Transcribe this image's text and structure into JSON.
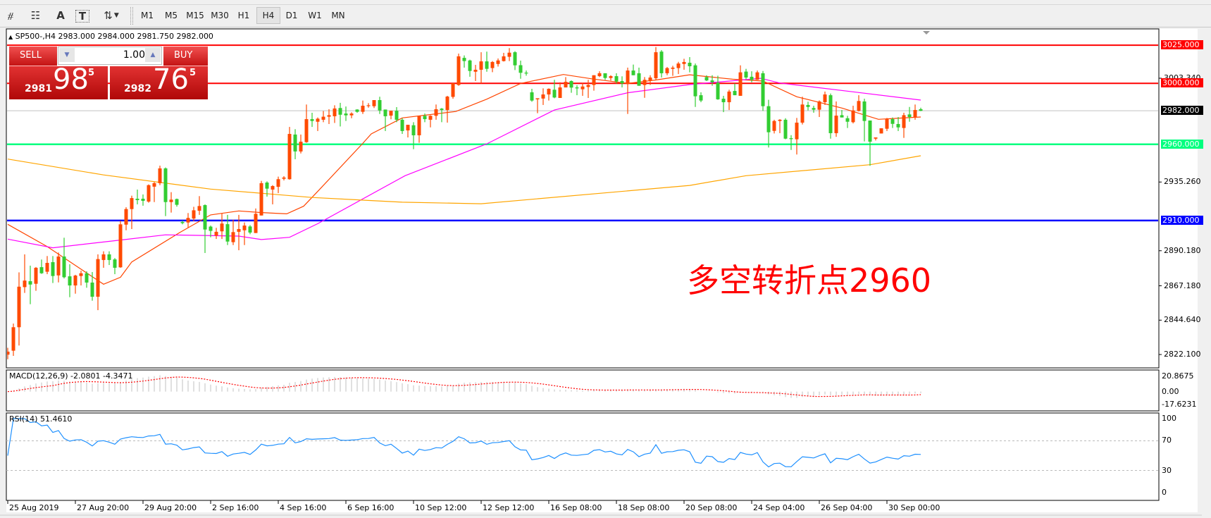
{
  "toolbar": {
    "icons": [
      "elliott-wave-icon",
      "fibonacci-icon",
      "text-icon",
      "text-label-icon",
      "arrows-icon"
    ],
    "glyphs": {
      "elliott": "⧣",
      "fibo": "☷",
      "text": "A",
      "label": "T",
      "arrows": "⇅"
    },
    "timeframes": [
      "M1",
      "M5",
      "M15",
      "M30",
      "H1",
      "H4",
      "D1",
      "W1",
      "MN"
    ],
    "active_timeframe": "H4"
  },
  "chart": {
    "symbol_line": "SP500-,H4  2983.000 2984.000 2981.750 2982.000",
    "annotation": "多空转折点2960",
    "colors": {
      "up": "#ff4a00",
      "down": "#32cd32",
      "ma_fast": "#ff4500",
      "ma_mid": "#ff00ff",
      "ma_slow": "#ffa500",
      "macd_hist": "#c0c0c0",
      "macd_signal": "#ff0000",
      "rsi": "#1e90ff"
    }
  },
  "trade_panel": {
    "sell_label": "SELL",
    "buy_label": "BUY",
    "lot": "1.00",
    "sell_price": {
      "big_prefix": "2981",
      "big": "98",
      "sup": "5"
    },
    "buy_price": {
      "big_prefix": "2982",
      "big": "76",
      "sup": "5"
    }
  },
  "price_axis": {
    "ticks": [
      "3003.340",
      "2935.260",
      "2890.180",
      "2867.180",
      "2844.640",
      "2822.100"
    ],
    "tick_values": [
      3003.34,
      2935.26,
      2890.18,
      2867.18,
      2844.64,
      2822.1
    ],
    "levels": [
      {
        "value": 3025.0,
        "label": "3025.000",
        "color": "#ff0000"
      },
      {
        "value": 3000.0,
        "label": "3000.000",
        "color": "#ff0000"
      },
      {
        "value": 2982.0,
        "label": "2982.000",
        "color": "#000000"
      },
      {
        "value": 2960.0,
        "label": "2960.000",
        "color": "#00ff7f"
      },
      {
        "value": 2910.0,
        "label": "2910.000",
        "color": "#0000ff"
      }
    ]
  },
  "time_axis": {
    "labels": [
      "25 Aug 2019",
      "27 Aug 20:00",
      "29 Aug 20:00",
      "2 Sep 16:00",
      "4 Sep 16:00",
      "6 Sep 16:00",
      "10 Sep 12:00",
      "12 Sep 12:00",
      "16 Sep 08:00",
      "18 Sep 08:00",
      "20 Sep 08:00",
      "24 Sep 04:00",
      "26 Sep 04:00",
      "30 Sep 00:00"
    ],
    "bars_per_label": 12
  },
  "macd": {
    "label": "MACD(12,26,9) -2.0801 -4.3471",
    "axis": [
      "20.8675",
      "0.00",
      "-17.6231"
    ],
    "range": [
      -17.6231,
      20.8675
    ]
  },
  "rsi": {
    "label": "RSI(14) 51.4610",
    "axis": [
      "100",
      "70",
      "30",
      "0"
    ],
    "levels": [
      70,
      30
    ]
  },
  "chart_data": {
    "type": "candlestick",
    "symbol": "SP500-",
    "timeframe": "H4",
    "ylim": [
      2812,
      3046
    ],
    "ohlc": [
      [
        2822,
        2826.5,
        2819,
        2824
      ],
      [
        2824.6,
        2842.4,
        2821.2,
        2840
      ],
      [
        2840,
        2876,
        2828,
        2866.6
      ],
      [
        2866.3,
        2887.8,
        2862.5,
        2870.6
      ],
      [
        2870.2,
        2880.4,
        2855.1,
        2868
      ],
      [
        2868.5,
        2879.5,
        2863.9,
        2879
      ],
      [
        2879.4,
        2884.4,
        2875,
        2875.4
      ],
      [
        2876.4,
        2886.7,
        2874.8,
        2882.2
      ],
      [
        2882.7,
        2886.7,
        2869,
        2873.6
      ],
      [
        2874,
        2889,
        2869.4,
        2886.4
      ],
      [
        2886.4,
        2898.7,
        2872,
        2872.8
      ],
      [
        2873.4,
        2881.3,
        2859.7,
        2867.4
      ],
      [
        2867.4,
        2874.4,
        2862,
        2873.9
      ],
      [
        2873.6,
        2877.1,
        2867.4,
        2875.4
      ],
      [
        2875.4,
        2876.7,
        2865.9,
        2869.3
      ],
      [
        2869.3,
        2876.2,
        2857.4,
        2860
      ],
      [
        2860,
        2887.8,
        2851.2,
        2884.7
      ],
      [
        2884.1,
        2889.8,
        2879,
        2887.8
      ],
      [
        2887.8,
        2889.8,
        2880.8,
        2884.1
      ],
      [
        2884.5,
        2885.4,
        2874.8,
        2879
      ],
      [
        2879.3,
        2909.8,
        2879,
        2907.5
      ],
      [
        2907.3,
        2918.7,
        2903.6,
        2917.5
      ],
      [
        2917.5,
        2926.3,
        2904.4,
        2924.7
      ],
      [
        2924.3,
        2930.3,
        2920.6,
        2923.4
      ],
      [
        2924.3,
        2927.1,
        2919.7,
        2922.9
      ],
      [
        2922.4,
        2933.7,
        2921.7,
        2933.2
      ],
      [
        2932.2,
        2935.2,
        2922.1,
        2934.5
      ],
      [
        2934.5,
        2946,
        2933.2,
        2944.2
      ],
      [
        2944.2,
        2944.8,
        2912.9,
        2922.1
      ],
      [
        2922.1,
        2928.6,
        2915.2,
        2923.7
      ],
      [
        2924.1,
        2924.4,
        2919.1,
        2920.3
      ],
      [
        2909,
        2910,
        2907.5,
        2908.3
      ],
      [
        2908.7,
        2914.9,
        2905.5,
        2911.7
      ],
      [
        2911.3,
        2919,
        2909.5,
        2916.7
      ],
      [
        2916.4,
        2926,
        2913.7,
        2919.5
      ],
      [
        2920.1,
        2920.6,
        2888.7,
        2904.1
      ],
      [
        2906,
        2906.7,
        2899,
        2903.2
      ],
      [
        2900.1,
        2905.2,
        2897.9,
        2902.6
      ],
      [
        2902.9,
        2914.7,
        2897.9,
        2908
      ],
      [
        2907.6,
        2913.7,
        2893.9,
        2896.2
      ],
      [
        2895.8,
        2910.6,
        2893.9,
        2902.4
      ],
      [
        2902.6,
        2913.7,
        2890.5,
        2904.4
      ],
      [
        2903.6,
        2908.7,
        2893.9,
        2906.7
      ],
      [
        2906.1,
        2907,
        2901,
        2902.1
      ],
      [
        2901.8,
        2917.9,
        2901.8,
        2914.4
      ],
      [
        2913.3,
        2936,
        2913.3,
        2934.5
      ],
      [
        2934.9,
        2935.7,
        2925.7,
        2930.9
      ],
      [
        2930.3,
        2933.2,
        2920.6,
        2932.6
      ],
      [
        2932.1,
        2938.8,
        2928,
        2937.1
      ],
      [
        2937.4,
        2939.1,
        2936.3,
        2938.2
      ],
      [
        2937.1,
        2971.4,
        2936.8,
        2966.8
      ],
      [
        2966.4,
        2969.9,
        2950.2,
        2955.3
      ],
      [
        2955.3,
        2966.4,
        2954,
        2961.7
      ],
      [
        2961.4,
        2986.1,
        2961,
        2976.5
      ],
      [
        2976.5,
        2980.7,
        2971.4,
        2975.3
      ],
      [
        2974.8,
        2977.6,
        2968.7,
        2976.8
      ],
      [
        2976.1,
        2981.8,
        2974.5,
        2978.1
      ],
      [
        2978.1,
        2983,
        2973.3,
        2979.1
      ],
      [
        2978.4,
        2985.6,
        2974,
        2983.5
      ],
      [
        2983.8,
        2987.2,
        2971.7,
        2979.4
      ],
      [
        2980.2,
        2984.8,
        2975.3,
        2979
      ],
      [
        2979,
        2981,
        2977.1,
        2980.2
      ],
      [
        2982.8,
        2983,
        2980.7,
        2981.3
      ],
      [
        2981.3,
        2988.7,
        2979.9,
        2985.3
      ],
      [
        2985.6,
        2987,
        2984,
        2985.6
      ],
      [
        2985,
        2989,
        2983.8,
        2989
      ],
      [
        2989,
        2991.2,
        2979.9,
        2982.2
      ],
      [
        2982.8,
        2982.8,
        2968.7,
        2978.4
      ],
      [
        2978.8,
        2982,
        2976.4,
        2982
      ],
      [
        2982,
        2984.4,
        2974.5,
        2976.1
      ],
      [
        2976.1,
        2977.1,
        2966.8,
        2968.7
      ],
      [
        2969.1,
        2972.8,
        2964.5,
        2972.8
      ],
      [
        2972.5,
        2974.5,
        2956.8,
        2965.9
      ],
      [
        2965.9,
        2978.8,
        2961,
        2978.8
      ],
      [
        2978.7,
        2980.2,
        2974.5,
        2976.5
      ],
      [
        2976.1,
        2979.1,
        2971.1,
        2978.7
      ],
      [
        2978.7,
        2986.1,
        2976.1,
        2983
      ],
      [
        2983.4,
        2983.8,
        2974.5,
        2982.5
      ],
      [
        2982.5,
        2991.8,
        2974.2,
        2991.3
      ],
      [
        2991.1,
        3000.1,
        2989.9,
        3000.1
      ],
      [
        2998.9,
        3019.5,
        2998.4,
        3017.7
      ],
      [
        3016.7,
        3018.3,
        3010.3,
        3014.6
      ],
      [
        3015,
        3015.5,
        3004.3,
        3008.1
      ],
      [
        3007.6,
        3012.1,
        3001.5,
        3008.9
      ],
      [
        3008.9,
        3020.4,
        2999.9,
        3014.4
      ],
      [
        3014.4,
        3020.8,
        3007.6,
        3009.5
      ],
      [
        3010,
        3014.6,
        3007.3,
        3014
      ],
      [
        3012.7,
        3016.3,
        3011,
        3015
      ],
      [
        3014.6,
        3020,
        3014.3,
        3017.7
      ],
      [
        3017.4,
        3023.1,
        3014.6,
        3020.1
      ],
      [
        3020.4,
        3021.1,
        3008.7,
        3011.8
      ],
      [
        3011.9,
        3014.9,
        3003,
        3006.9
      ],
      [
        3007,
        3008.4,
        3005,
        3006.6
      ],
      [
        2994.1,
        2996.4,
        2987.9,
        2988.7
      ],
      [
        2989.5,
        2990.2,
        2980.4,
        2990.2
      ],
      [
        2990,
        2996.7,
        2985.8,
        2992.7
      ],
      [
        2992.7,
        2996.7,
        2988.7,
        2996.4
      ],
      [
        2995.8,
        3002.3,
        2990.2,
        2990.7
      ],
      [
        2990.4,
        3000.7,
        2990.4,
        2997.3
      ],
      [
        2997.3,
        3004.1,
        2997.3,
        3001
      ],
      [
        3001.5,
        3001.9,
        2993.8,
        2997.2
      ],
      [
        2997.3,
        2998.7,
        2992.2,
        2996.7
      ],
      [
        2996.1,
        3000.4,
        2991.8,
        2997.9
      ],
      [
        2997.6,
        3002.3,
        2990.4,
        2998.9
      ],
      [
        2998.9,
        3005.3,
        2995.2,
        3005.3
      ],
      [
        3004.7,
        3007.9,
        3004.1,
        3006.6
      ],
      [
        3006.6,
        3006.6,
        3002.3,
        3003.5
      ],
      [
        3003.5,
        3005.3,
        3001.8,
        3004.7
      ],
      [
        3004.7,
        3006.6,
        2999.9,
        3001.2
      ],
      [
        3001.5,
        3004.6,
        2997.3,
        3000
      ],
      [
        2999.5,
        3010.3,
        2979.9,
        3008.4
      ],
      [
        3008.4,
        3012.3,
        3005.3,
        3005.3
      ],
      [
        3006.6,
        3010.3,
        2998.4,
        2998.4
      ],
      [
        2998.9,
        3004.1,
        2990.5,
        3002.3
      ],
      [
        3001.9,
        3005.3,
        2998.9,
        3003.8
      ],
      [
        3003.3,
        3023.8,
        3002.3,
        3020.4
      ],
      [
        3020.8,
        3021.8,
        3003.8,
        3006.6
      ],
      [
        3006.6,
        3010.7,
        3005.3,
        3010
      ],
      [
        3009.5,
        3011.5,
        3004.9,
        3010.3
      ],
      [
        3010,
        3014.1,
        3006.1,
        3013
      ],
      [
        3012.7,
        3016.1,
        3008.9,
        3014
      ],
      [
        3013.5,
        3017.2,
        3007.2,
        3011.2
      ],
      [
        3011.8,
        3013,
        2984.5,
        2991.5
      ],
      [
        2992.2,
        2994.1,
        2987.6,
        2988.7
      ],
      [
        3004.1,
        3005.3,
        3001.5,
        3001.9
      ],
      [
        3001.9,
        3005.3,
        2998.4,
        3000.7
      ],
      [
        3000.4,
        3005,
        2989.2,
        2989.5
      ],
      [
        2989.9,
        2991.8,
        2981.1,
        2987.6
      ],
      [
        2987.6,
        2995.8,
        2982.5,
        2994.6
      ],
      [
        2995,
        2999.9,
        2992.2,
        2992.2
      ],
      [
        2991.8,
        3011.8,
        2991.8,
        3007.2
      ],
      [
        3007.7,
        3009.5,
        3002.6,
        3003.8
      ],
      [
        3004.3,
        3007.9,
        3000.7,
        3002.3
      ],
      [
        3002.3,
        3008.4,
        3002.3,
        3007.2
      ],
      [
        3006.6,
        3008.1,
        2981.9,
        2985
      ],
      [
        2985,
        2989.2,
        2957.9,
        2967.9
      ],
      [
        2968.8,
        2976.1,
        2967.1,
        2975.3
      ],
      [
        2975.3,
        2976.5,
        2967.3,
        2976.1
      ],
      [
        2976.1,
        2977.1,
        2963.3,
        2963.7
      ],
      [
        2964,
        2966,
        2956.3,
        2963.4
      ],
      [
        2963.3,
        2977.3,
        2953.3,
        2974.2
      ],
      [
        2974.2,
        2991.2,
        2973,
        2986.1
      ],
      [
        2985.8,
        2987.9,
        2982.2,
        2984.5
      ],
      [
        2983.8,
        2985.3,
        2980.7,
        2982.7
      ],
      [
        2982.7,
        2988.8,
        2977.9,
        2988.1
      ],
      [
        2987.6,
        2994.6,
        2985.8,
        2992.7
      ],
      [
        2992.2,
        2993.3,
        2963.7,
        2967.3
      ],
      [
        2967.3,
        2988.1,
        2964.9,
        2978.8
      ],
      [
        2979.1,
        2982.5,
        2977.6,
        2977.6
      ],
      [
        2977.1,
        2978.7,
        2970.7,
        2974.8
      ],
      [
        2974.5,
        2985.3,
        2973.7,
        2982.2
      ],
      [
        2981.9,
        2992.2,
        2981.5,
        2988.4
      ],
      [
        2988.1,
        2989.9,
        2961.9,
        2975.3
      ],
      [
        2975.6,
        2975.6,
        2945.9,
        2961.7
      ],
      [
        2963.7,
        2964.5,
        2962.5,
        2964.5
      ],
      [
        2967.1,
        2970.5,
        2967.1,
        2970.5
      ],
      [
        2970.2,
        2977.3,
        2968.7,
        2976.5
      ],
      [
        2976.5,
        2977.6,
        2970.7,
        2973.4
      ],
      [
        2973.3,
        2977.9,
        2968.7,
        2971.1
      ],
      [
        2970.7,
        2980.7,
        2964.2,
        2979.1
      ],
      [
        2979.6,
        2984.5,
        2974.8,
        2977.9
      ],
      [
        2977.6,
        2986.1,
        2976.1,
        2982.5
      ],
      [
        2983,
        2984,
        2981.75,
        2982
      ]
    ],
    "moving_averages": [
      {
        "points": [
          [
            0,
            2907.5
          ],
          [
            7,
            2892.9
          ],
          [
            17,
            2868.2
          ],
          [
            20,
            2872.8
          ],
          [
            22,
            2882.8
          ],
          [
            30.5,
            2902.1
          ],
          [
            36,
            2913.7
          ],
          [
            41,
            2916.3
          ],
          [
            45,
            2915.2
          ],
          [
            49.5,
            2914.4
          ],
          [
            52.5,
            2919.4
          ],
          [
            55,
            2929.1
          ],
          [
            63,
            2960.6
          ],
          [
            64.5,
            2966.8
          ],
          [
            70,
            2977.3
          ],
          [
            79.5,
            2981.5
          ],
          [
            85,
            2989.6
          ],
          [
            91,
            2999.9
          ],
          [
            98.6,
            3005.8
          ],
          [
            103.5,
            3003.0
          ],
          [
            110,
            2999.9
          ],
          [
            115,
            3002.2
          ],
          [
            121,
            3005.6
          ],
          [
            128.6,
            3002.7
          ],
          [
            134,
            3001.5
          ],
          [
            140,
            2991.2
          ],
          [
            148,
            2983.8
          ],
          [
            154.5,
            2976.4
          ],
          [
            162,
            2977.9
          ]
        ]
      },
      {
        "points": [
          [
            0,
            2897.8
          ],
          [
            8,
            2892.1
          ],
          [
            20,
            2897.2
          ],
          [
            28,
            2900.6
          ],
          [
            41,
            2899.8
          ],
          [
            45,
            2897.5
          ],
          [
            50,
            2899.0
          ],
          [
            55,
            2907.9
          ],
          [
            70.5,
            2939.4
          ],
          [
            85,
            2960.3
          ],
          [
            97,
            2982.5
          ],
          [
            110,
            2993.8
          ],
          [
            121,
            2999.2
          ],
          [
            133.6,
            3003.3
          ],
          [
            137,
            3000.2
          ],
          [
            150,
            2994.4
          ],
          [
            162,
            2989.0
          ]
        ]
      },
      {
        "points": [
          [
            0,
            2950.3
          ],
          [
            17,
            2939.9
          ],
          [
            36,
            2930.6
          ],
          [
            54,
            2925.1
          ],
          [
            70,
            2922.0
          ],
          [
            84,
            2921.0
          ],
          [
            121,
            2933.0
          ],
          [
            131,
            2939.4
          ],
          [
            153,
            2946.6
          ],
          [
            162,
            2952.5
          ]
        ]
      }
    ]
  }
}
